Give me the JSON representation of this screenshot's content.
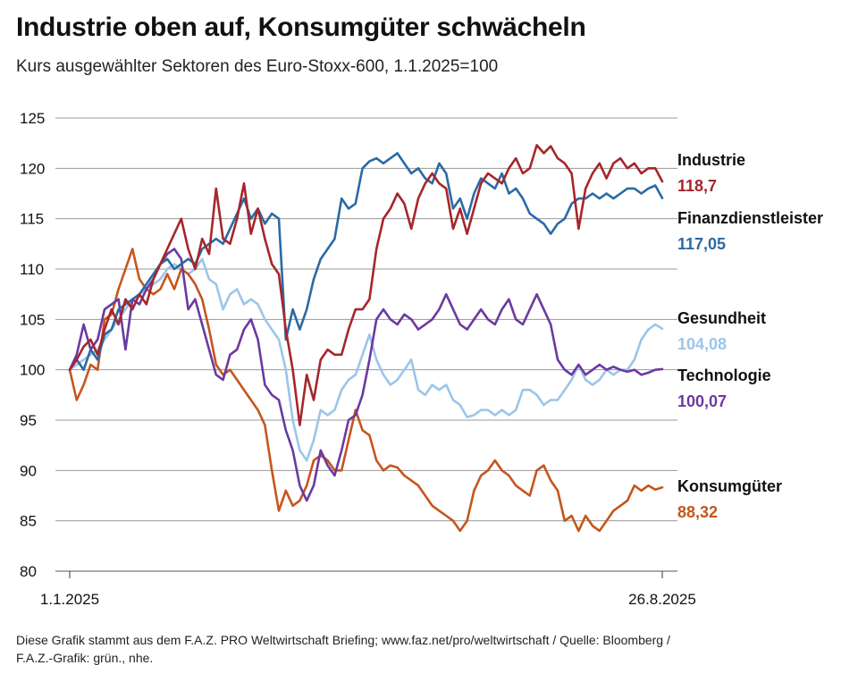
{
  "chart_data": {
    "type": "line",
    "title": "Industrie oben auf, Konsumgüter schwächeln",
    "subtitle": "Kurs ausgewählter Sektoren des Euro-Stoxx-600, 1.1.2025=100",
    "x_start_label": "1.1.2025",
    "x_end_label": "26.8.2025",
    "xlabel": "",
    "ylabel": "",
    "ylim": [
      80,
      125
    ],
    "yticks": [
      80,
      85,
      90,
      95,
      100,
      105,
      110,
      115,
      120,
      125
    ],
    "grid": true,
    "x_unit": "trading day",
    "series": [
      {
        "name": "Industrie",
        "end_label": "118,7",
        "color": "#a6262b",
        "x": [
          0,
          2,
          4,
          6,
          8,
          10,
          12,
          14,
          16,
          18,
          20,
          22,
          24,
          26,
          28,
          30,
          32,
          34,
          36,
          38,
          40,
          42,
          44,
          46,
          48,
          50,
          52,
          54,
          56,
          58,
          60,
          62,
          64,
          66,
          68,
          70,
          72,
          74,
          76,
          78,
          80,
          82,
          84,
          86,
          88,
          90,
          92,
          94,
          96,
          98,
          100,
          102,
          104,
          106,
          108,
          110,
          112,
          114,
          116,
          118,
          120,
          122,
          124,
          126,
          128,
          130,
          132,
          134,
          136,
          138,
          140,
          142,
          144,
          146,
          148,
          150,
          152,
          154,
          156,
          158,
          160,
          162,
          164,
          166,
          168,
          170
        ],
        "values": [
          100,
          101,
          102.3,
          103,
          101.5,
          104,
          106,
          104.5,
          107,
          106,
          107.5,
          106.5,
          109,
          110.5,
          112,
          113.5,
          115,
          112,
          110,
          113,
          111.5,
          118,
          113,
          112.5,
          115,
          118.5,
          113.5,
          116,
          113,
          110.5,
          109.5,
          104,
          100,
          94.5,
          99.5,
          97,
          101,
          102,
          101.5,
          101.5,
          104,
          106,
          106,
          107,
          112,
          115,
          116,
          117.5,
          116.5,
          114,
          117,
          118.5,
          119.5,
          118.5,
          118,
          114,
          116,
          113.5,
          116,
          118.5,
          119.5,
          119,
          118.5,
          120,
          121,
          119.5,
          120,
          122.3,
          121.5,
          122.2,
          121,
          120.5,
          119.5,
          114,
          118,
          119.5,
          120.5,
          119,
          120.5,
          121,
          120,
          120.5,
          119.5,
          120,
          120,
          118.7
        ]
      },
      {
        "name": "Finanzdienstleister",
        "end_label": "117,05",
        "color": "#2b6aa5",
        "x": [
          0,
          2,
          4,
          6,
          8,
          10,
          12,
          14,
          16,
          18,
          20,
          22,
          24,
          26,
          28,
          30,
          32,
          34,
          36,
          38,
          40,
          42,
          44,
          46,
          48,
          50,
          52,
          54,
          56,
          58,
          60,
          62,
          64,
          66,
          68,
          70,
          72,
          74,
          76,
          78,
          80,
          82,
          84,
          86,
          88,
          90,
          92,
          94,
          96,
          98,
          100,
          102,
          104,
          106,
          108,
          110,
          112,
          114,
          116,
          118,
          120,
          122,
          124,
          126,
          128,
          130,
          132,
          134,
          136,
          138,
          140,
          142,
          144,
          146,
          148,
          150,
          152,
          154,
          156,
          158,
          160,
          162,
          164,
          166,
          168,
          170
        ],
        "values": [
          100,
          101,
          100,
          102,
          101,
          103.5,
          104,
          106,
          106.5,
          107,
          107.5,
          108.5,
          109.5,
          110.5,
          111,
          110,
          110.5,
          111,
          110.5,
          112,
          112.5,
          113,
          112.5,
          114,
          115.5,
          117,
          115,
          116,
          114.5,
          115.5,
          115,
          103,
          106,
          104,
          106,
          109,
          111,
          112,
          113,
          117,
          116,
          116.5,
          120,
          120.7,
          121,
          120.5,
          121,
          121.5,
          120.5,
          119.5,
          120,
          119,
          118.5,
          120.5,
          119.5,
          116,
          117,
          115,
          117.5,
          119,
          118.5,
          118,
          119.5,
          117.5,
          118,
          117,
          115.5,
          115,
          114.5,
          113.5,
          114.5,
          115,
          116.5,
          117,
          117,
          117.5,
          117,
          117.5,
          117,
          117.5,
          118,
          118,
          117.5,
          118,
          118.3,
          117.05
        ]
      },
      {
        "name": "Gesundheit",
        "end_label": "104,08",
        "color": "#9cc5ea",
        "x": [
          0,
          2,
          4,
          6,
          8,
          10,
          12,
          14,
          16,
          18,
          20,
          22,
          24,
          26,
          28,
          30,
          32,
          34,
          36,
          38,
          40,
          42,
          44,
          46,
          48,
          50,
          52,
          54,
          56,
          58,
          60,
          62,
          64,
          66,
          68,
          70,
          72,
          74,
          76,
          78,
          80,
          82,
          84,
          86,
          88,
          90,
          92,
          94,
          96,
          98,
          100,
          102,
          104,
          106,
          108,
          110,
          112,
          114,
          116,
          118,
          120,
          122,
          124,
          126,
          128,
          130,
          132,
          134,
          136,
          138,
          140,
          142,
          144,
          146,
          148,
          150,
          152,
          154,
          156,
          158,
          160,
          162,
          164,
          166,
          168,
          170
        ],
        "values": [
          100,
          100.5,
          101,
          101.5,
          102,
          103,
          104,
          105,
          106,
          107,
          107.5,
          108,
          108.5,
          109,
          110,
          110.5,
          110,
          109.5,
          110,
          111,
          109,
          108.5,
          106,
          107.5,
          108,
          106.5,
          107,
          106.5,
          105,
          104,
          103,
          100,
          95,
          92,
          91,
          93,
          96,
          95.5,
          96,
          98,
          99,
          99.5,
          101.5,
          103.5,
          101,
          99.5,
          98.5,
          99,
          100,
          101,
          98,
          97.5,
          98.5,
          98,
          98.5,
          97,
          96.5,
          95.3,
          95.5,
          96,
          96,
          95.5,
          96,
          95.5,
          96,
          98,
          98,
          97.5,
          96.5,
          97,
          97,
          98,
          99,
          100.5,
          99,
          98.5,
          99,
          100,
          99.5,
          100,
          100,
          101,
          103,
          104,
          104.5,
          104.08
        ]
      },
      {
        "name": "Technologie",
        "end_label": "100,07",
        "color": "#6a3aa0",
        "x": [
          0,
          2,
          4,
          6,
          8,
          10,
          12,
          14,
          16,
          18,
          20,
          22,
          24,
          26,
          28,
          30,
          32,
          34,
          36,
          38,
          40,
          42,
          44,
          46,
          48,
          50,
          52,
          54,
          56,
          58,
          60,
          62,
          64,
          66,
          68,
          70,
          72,
          74,
          76,
          78,
          80,
          82,
          84,
          86,
          88,
          90,
          92,
          94,
          96,
          98,
          100,
          102,
          104,
          106,
          108,
          110,
          112,
          114,
          116,
          118,
          120,
          122,
          124,
          126,
          128,
          130,
          132,
          134,
          136,
          138,
          140,
          142,
          144,
          146,
          148,
          150,
          152,
          154,
          156,
          158,
          160,
          162,
          164,
          166,
          168,
          170
        ],
        "values": [
          100,
          101.5,
          104.5,
          102,
          103,
          106,
          106.5,
          107,
          102,
          107,
          106.5,
          108,
          109,
          110.5,
          111.5,
          112,
          111,
          106,
          107,
          104.5,
          102,
          99.5,
          99,
          101.5,
          102,
          104,
          105,
          103,
          98.5,
          97.5,
          97,
          94,
          92,
          88.5,
          87,
          88.5,
          92,
          90.5,
          89.5,
          92,
          95,
          95.5,
          97.5,
          101,
          105,
          106,
          105,
          104.5,
          105.5,
          105,
          104,
          104.5,
          105,
          106,
          107.5,
          106,
          104.5,
          104,
          105,
          106,
          105,
          104.5,
          106,
          107,
          105,
          104.5,
          106,
          107.5,
          106,
          104.5,
          101,
          100,
          99.5,
          100.5,
          99.5,
          100,
          100.5,
          100,
          100.3,
          100,
          99.8,
          100,
          99.5,
          99.7,
          100,
          100.07
        ]
      },
      {
        "name": "Konsumgüter",
        "end_label": "88,32",
        "color": "#c5561c",
        "x": [
          0,
          2,
          4,
          6,
          8,
          10,
          12,
          14,
          16,
          18,
          20,
          22,
          24,
          26,
          28,
          30,
          32,
          34,
          36,
          38,
          40,
          42,
          44,
          46,
          48,
          50,
          52,
          54,
          56,
          58,
          60,
          62,
          64,
          66,
          68,
          70,
          72,
          74,
          76,
          78,
          80,
          82,
          84,
          86,
          88,
          90,
          92,
          94,
          96,
          98,
          100,
          102,
          104,
          106,
          108,
          110,
          112,
          114,
          116,
          118,
          120,
          122,
          124,
          126,
          128,
          130,
          132,
          134,
          136,
          138,
          140,
          142,
          144,
          146,
          148,
          150,
          152,
          154,
          156,
          158,
          160,
          162,
          164,
          166,
          168,
          170
        ],
        "values": [
          100,
          97,
          98.5,
          100.5,
          100,
          105,
          105.5,
          108,
          110,
          112,
          109,
          108,
          107.5,
          108,
          109.5,
          108,
          110,
          109.5,
          108.5,
          107,
          104,
          100.5,
          99.5,
          100,
          99,
          98,
          97,
          96,
          94.5,
          90,
          86,
          88,
          86.5,
          87,
          88.5,
          91,
          91.5,
          91,
          90,
          90,
          93,
          96,
          94,
          93.5,
          91,
          90,
          90.5,
          90.3,
          89.5,
          89,
          88.5,
          87.5,
          86.5,
          86,
          85.5,
          85,
          84,
          85,
          88,
          89.5,
          90,
          91,
          90,
          89.5,
          88.5,
          88,
          87.5,
          90,
          90.5,
          89,
          88,
          85,
          85.5,
          84,
          85.5,
          84.5,
          84,
          85,
          86,
          86.5,
          87,
          88.5,
          88,
          88.5,
          88.1,
          88.32
        ]
      }
    ]
  },
  "footer": {
    "line1": "Diese Grafik stammt aus dem F.A.Z. PRO Weltwirtschaft Briefing; www.faz.net/pro/weltwirtschaft / Quelle: Bloomberg /",
    "line2": "F.A.Z.-Grafik: grün., nhe."
  }
}
